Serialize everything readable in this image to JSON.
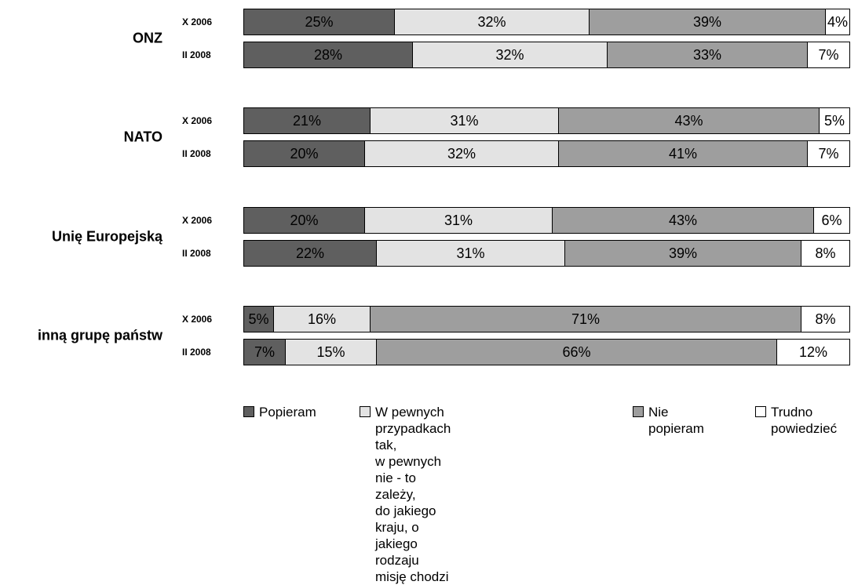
{
  "chart_data": {
    "type": "bar",
    "orientation": "horizontal",
    "stacked": true,
    "normalized": true,
    "categories": [
      {
        "group": "ONZ",
        "rows": [
          {
            "label": "X 2006",
            "values": [
              25,
              32,
              39,
              4
            ],
            "labels": [
              "25%",
              "32%",
              "39%",
              "4%"
            ]
          },
          {
            "label": "II 2008",
            "values": [
              28,
              32,
              33,
              7
            ],
            "labels": [
              "28%",
              "32%",
              "33%",
              "7%"
            ]
          }
        ]
      },
      {
        "group": "NATO",
        "rows": [
          {
            "label": "X 2006",
            "values": [
              21,
              31,
              43,
              5
            ],
            "labels": [
              "21%",
              "31%",
              "43%",
              "5%"
            ]
          },
          {
            "label": "II 2008",
            "values": [
              20,
              32,
              41,
              7
            ],
            "labels": [
              "20%",
              "32%",
              "41%",
              "7%"
            ]
          }
        ]
      },
      {
        "group": "Unię Europejską",
        "rows": [
          {
            "label": "X 2006",
            "values": [
              20,
              31,
              43,
              6
            ],
            "labels": [
              "20%",
              "31%",
              "43%",
              "6%"
            ]
          },
          {
            "label": "II 2008",
            "values": [
              22,
              31,
              39,
              8
            ],
            "labels": [
              "22%",
              "31%",
              "39%",
              "8%"
            ]
          }
        ]
      },
      {
        "group": "inną grupę państw",
        "rows": [
          {
            "label": "X 2006",
            "values": [
              5,
              16,
              71,
              8
            ],
            "labels": [
              "5%",
              "16%",
              "71%",
              "8%"
            ]
          },
          {
            "label": "II 2008",
            "values": [
              7,
              15,
              66,
              12
            ],
            "labels": [
              "7%",
              "15%",
              "66%",
              "12%"
            ]
          }
        ]
      }
    ],
    "series": [
      {
        "name": "Popieram",
        "color": "#5f5f5f"
      },
      {
        "name": "W pewnych przypadkach tak,\nw pewnych nie - to zależy,\ndo jakiego kraju, o jakiego\nrodzaju misję chodzi",
        "color": "#e3e3e3"
      },
      {
        "name": "Nie\npopieram",
        "color": "#9e9e9e"
      },
      {
        "name": "Trudno\npowiedzieć",
        "color": "#ffffff"
      }
    ],
    "legend": "bottom",
    "grid": false
  }
}
